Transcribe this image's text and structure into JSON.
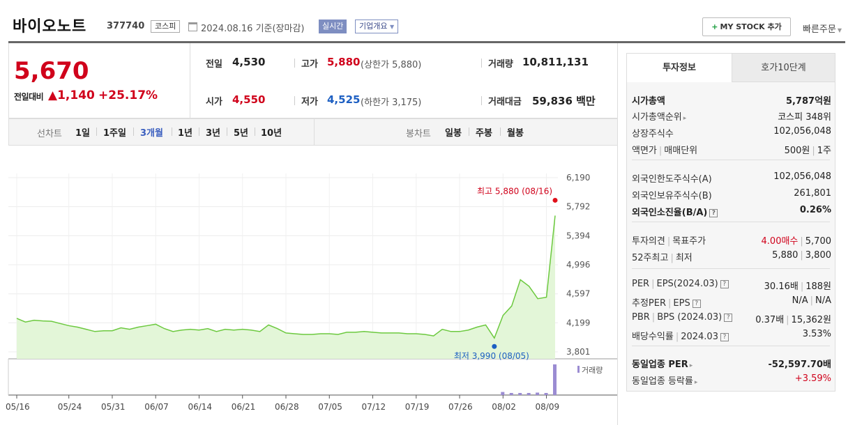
{
  "stock": {
    "name": "바이오노트",
    "code": "377740",
    "market": "코스피",
    "date_text": "2024.08.16 기준(장마감)",
    "live_label": "실시간",
    "corp_info_label": "기업개요",
    "mystock_label": "MY STOCK 추가",
    "quick_order_label": "빠른주문"
  },
  "price": {
    "current": "5,670",
    "diff_label": "전일대비",
    "diff_value": "1,140",
    "diff_rate": "+25.17%",
    "up_color": "#d0021b"
  },
  "stats": {
    "prev_label": "전일",
    "prev_value": "4,530",
    "high_label": "고가",
    "high_value": "5,880",
    "upper_limit": "(상한가 5,880)",
    "volume_label": "거래량",
    "volume_value": "10,811,131",
    "open_label": "시가",
    "open_value": "4,550",
    "low_label": "저가",
    "low_value": "4,525",
    "lower_limit": "(하한가 3,175)",
    "amount_label": "거래대금",
    "amount_value": "59,836 백만"
  },
  "period_bar": {
    "line_chart_label": "선차트",
    "line_periods": [
      "1일",
      "1주일",
      "3개월",
      "1년",
      "3년",
      "5년",
      "10년"
    ],
    "active_period": "3개월",
    "candle_label": "봉차트",
    "candle_periods": [
      "일봉",
      "주봉",
      "월봉"
    ]
  },
  "chart_data": {
    "type": "area",
    "line_color": "#6cc93f",
    "fill_color": "#e3f6d8",
    "y_ticks": [
      6190,
      5792,
      5394,
      4996,
      4597,
      4199,
      3801
    ],
    "ylim": [
      3801,
      6190
    ],
    "x_tick_labels": [
      "05/16",
      "05/24",
      "05/31",
      "06/07",
      "06/14",
      "06/21",
      "06/28",
      "07/05",
      "07/12",
      "07/19",
      "07/26",
      "08/02",
      "08/09"
    ],
    "x_tick_index": [
      0,
      6,
      11,
      16,
      21,
      26,
      31,
      36,
      41,
      46,
      51,
      56,
      61
    ],
    "values": [
      4260,
      4210,
      4235,
      4225,
      4220,
      4190,
      4160,
      4140,
      4110,
      4080,
      4090,
      4090,
      4130,
      4110,
      4140,
      4160,
      4180,
      4120,
      4080,
      4100,
      4110,
      4100,
      4120,
      4080,
      4110,
      4100,
      4110,
      4100,
      4080,
      4170,
      4120,
      4060,
      4050,
      4040,
      4040,
      4050,
      4050,
      4040,
      4070,
      4070,
      4080,
      4070,
      4060,
      4060,
      4060,
      4050,
      4050,
      4040,
      4020,
      4110,
      4080,
      4080,
      4100,
      4140,
      4170,
      3990,
      4300,
      4430,
      4790,
      4700,
      4530,
      4550,
      5670
    ],
    "high_annotation": "최고 5,880 (08/16)",
    "high_value": 5880,
    "low_annotation": "최저 3,990 (08/05)",
    "low_value": 3990,
    "volume_label": "거래량",
    "volume_color": "#9b8cd2",
    "volume": [
      0,
      0,
      0,
      0,
      0,
      0,
      0,
      0,
      0,
      0,
      0,
      0,
      0,
      0,
      0,
      0,
      0,
      0,
      0,
      0,
      0,
      0,
      0,
      0,
      0,
      0,
      0,
      0,
      0,
      0,
      0,
      0,
      0,
      0,
      0,
      0,
      0,
      0,
      0,
      0,
      0,
      0,
      0,
      0,
      0,
      0,
      0,
      0,
      0,
      0,
      0,
      0,
      0,
      0,
      0,
      0,
      0.1,
      0.05,
      0.06,
      0.04,
      0.08,
      0.05,
      1.0
    ]
  },
  "side": {
    "tab_active": "투자정보",
    "tab_other": "호가10단계",
    "rows": [
      {
        "label": "시가총액",
        "value": "5,787억원",
        "bold": true
      },
      {
        "label": "시가총액순위",
        "value": "코스피 348위",
        "arrow": true
      },
      {
        "label": "상장주식수",
        "value": "102,056,048"
      },
      {
        "label": "액면가",
        "label2": "매매단위",
        "value": "500원",
        "value2": "1주"
      },
      {
        "label": "외국인한도주식수(A)",
        "value": "102,056,048"
      },
      {
        "label": "외국인보유주식수(B)",
        "value": "261,801"
      },
      {
        "label": "외국인소진율(B/A)",
        "value": "0.26%",
        "bold": true,
        "help": true
      },
      {
        "label": "투자의견",
        "label2": "목표주가",
        "value": "4.00매수",
        "value2": "5,700"
      },
      {
        "label": "52주최고",
        "label2": "최저",
        "value": "5,880",
        "value2": "3,800"
      },
      {
        "label": "PER",
        "label2": "EPS(2024.03)",
        "value": "30.16배",
        "value2": "188원",
        "help": true
      },
      {
        "label": "추정PER",
        "label2": "EPS",
        "value": "N/A",
        "value2": "N/A",
        "help": true
      },
      {
        "label": "PBR",
        "label2": "BPS (2024.03)",
        "value": "0.37배",
        "value2": "15,362원",
        "help": true
      },
      {
        "label": "배당수익률",
        "label2": "2024.03",
        "value": "3.53%",
        "help": true
      },
      {
        "label": "동일업종 PER",
        "value": "-52,597.70배",
        "bold": true,
        "arrow": true
      },
      {
        "label": "동일업종 등락률",
        "value": "+3.59%",
        "arrow": true
      }
    ]
  }
}
